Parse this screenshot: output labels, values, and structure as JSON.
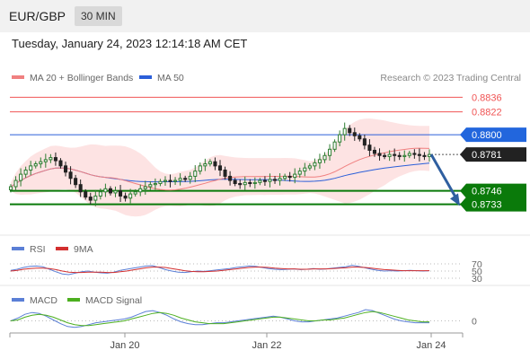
{
  "header": {
    "pair": "EUR/GBP",
    "timeframe": "30 MIN"
  },
  "datetime": "Tuesday, January 24, 2023 12:14:18 AM CET",
  "credit": "Research © 2023 Trading Central",
  "colors": {
    "resistance": "#f05454",
    "support": "#0a7a0a",
    "ma50": "#2b5fd9",
    "ma20": "#f08080",
    "band": "#fde0e0",
    "up": "#2e7d32",
    "down": "#222222",
    "arrow": "#2f5fa0",
    "rsi": "#5b7fd6",
    "rsi_ma": "#d32f2f",
    "macd": "#5b7fd6",
    "macd_signal": "#4caf1f"
  },
  "chart_data": [
    {
      "type": "candlestick",
      "legend": [
        {
          "name": "MA 20 + Bollinger Bands",
          "color": "#f08080"
        },
        {
          "name": "MA 50",
          "color": "#2b5fd9"
        }
      ],
      "x_ticks": [
        "Jan 20",
        "Jan 22",
        "Jan 24"
      ],
      "ylim": [
        0.8712,
        0.8845
      ],
      "current_price": {
        "label": "0.8781",
        "value": 0.8781
      },
      "levels": [
        {
          "label": "0.8836",
          "value": 0.8836,
          "kind": "resistance"
        },
        {
          "label": "0.8822",
          "value": 0.8822,
          "kind": "resistance"
        },
        {
          "label": "0.8800",
          "value": 0.88,
          "kind": "pivot"
        },
        {
          "label": "0.8746",
          "value": 0.8746,
          "kind": "support"
        },
        {
          "label": "0.8733",
          "value": 0.8733,
          "kind": "support"
        }
      ],
      "target_path": [
        [
          0.8781
        ],
        [
          0.8735
        ]
      ],
      "close": [
        0.875,
        0.8756,
        0.8762,
        0.8766,
        0.877,
        0.8772,
        0.8774,
        0.8776,
        0.8778,
        0.8775,
        0.877,
        0.8764,
        0.8758,
        0.8752,
        0.8745,
        0.874,
        0.8737,
        0.8741,
        0.8745,
        0.8748,
        0.8744,
        0.8746,
        0.8741,
        0.8739,
        0.8743,
        0.8745,
        0.8748,
        0.875,
        0.8752,
        0.8753,
        0.8755,
        0.8756,
        0.8755,
        0.8756,
        0.8758,
        0.8757,
        0.876,
        0.8765,
        0.877,
        0.8772,
        0.8774,
        0.877,
        0.8766,
        0.876,
        0.8756,
        0.8753,
        0.8752,
        0.8754,
        0.8753,
        0.8754,
        0.8756,
        0.8755,
        0.8757,
        0.8756,
        0.8758,
        0.876,
        0.8759,
        0.8762,
        0.8765,
        0.8768,
        0.877,
        0.8773,
        0.8776,
        0.878,
        0.8786,
        0.8793,
        0.88,
        0.8806,
        0.8802,
        0.8799,
        0.8796,
        0.879,
        0.8785,
        0.8782,
        0.878,
        0.8779,
        0.8781,
        0.878,
        0.8779,
        0.878,
        0.8782,
        0.8781,
        0.878,
        0.8779,
        0.8781
      ]
    },
    {
      "type": "line",
      "legend": [
        {
          "name": "RSI",
          "color": "#5b7fd6"
        },
        {
          "name": "9MA",
          "color": "#d32f2f"
        }
      ],
      "y_ticks": [
        "70",
        "50",
        "30"
      ],
      "ylim": [
        20,
        80
      ],
      "series": [
        {
          "name": "RSI",
          "values": [
            52,
            55,
            60,
            63,
            64,
            62,
            55,
            48,
            42,
            40,
            44,
            48,
            50,
            47,
            45,
            44,
            47,
            52,
            55,
            58,
            61,
            64,
            65,
            60,
            54,
            50,
            47,
            46,
            48,
            50,
            49,
            51,
            53,
            55,
            57,
            60,
            62,
            64,
            63,
            60,
            57,
            55,
            54,
            55,
            56,
            54,
            55,
            57,
            55,
            56,
            58,
            60,
            62,
            66,
            63,
            59,
            55,
            52,
            50,
            51,
            50,
            51,
            52,
            51,
            50,
            51
          ]
        },
        {
          "name": "9MA",
          "values": [
            50,
            52,
            55,
            57,
            58,
            58,
            57,
            54,
            50,
            47,
            46,
            46,
            47,
            47,
            47,
            46,
            46,
            48,
            50,
            53,
            56,
            59,
            61,
            61,
            60,
            57,
            54,
            51,
            49,
            48,
            48,
            49,
            50,
            52,
            54,
            56,
            58,
            60,
            61,
            61,
            60,
            58,
            57,
            56,
            56,
            55,
            55,
            56,
            56,
            56,
            57,
            58,
            59,
            61,
            61,
            60,
            58,
            56,
            54,
            53,
            52,
            51,
            51,
            51,
            51,
            51
          ]
        }
      ]
    },
    {
      "type": "line",
      "legend": [
        {
          "name": "MACD",
          "color": "#5b7fd6"
        },
        {
          "name": "MACD Signal",
          "color": "#4caf1f"
        }
      ],
      "y_ticks": [
        "0"
      ],
      "ylim": [
        -1.2,
        1.3
      ],
      "series": [
        {
          "name": "MACD",
          "values": [
            0.0,
            0.3,
            0.7,
            0.9,
            0.8,
            0.5,
            0.1,
            -0.3,
            -0.6,
            -0.7,
            -0.6,
            -0.4,
            -0.2,
            -0.1,
            0.0,
            0.1,
            0.2,
            0.4,
            0.7,
            1.0,
            1.1,
            0.9,
            0.6,
            0.2,
            -0.1,
            -0.3,
            -0.4,
            -0.4,
            -0.3,
            -0.2,
            -0.2,
            -0.1,
            0.0,
            0.1,
            0.2,
            0.3,
            0.4,
            0.5,
            0.4,
            0.2,
            0.0,
            -0.1,
            -0.1,
            0.0,
            0.1,
            0.2,
            0.3,
            0.5,
            0.7,
            0.9,
            1.2,
            1.1,
            0.8,
            0.5,
            0.2,
            0.0,
            -0.1,
            -0.2,
            -0.2,
            -0.2
          ]
        },
        {
          "name": "MACD Signal",
          "values": [
            0.0,
            0.1,
            0.4,
            0.6,
            0.7,
            0.6,
            0.4,
            0.1,
            -0.2,
            -0.4,
            -0.5,
            -0.5,
            -0.4,
            -0.3,
            -0.2,
            -0.1,
            0.0,
            0.2,
            0.4,
            0.6,
            0.8,
            0.9,
            0.8,
            0.6,
            0.3,
            0.1,
            -0.1,
            -0.2,
            -0.3,
            -0.3,
            -0.3,
            -0.2,
            -0.1,
            0.0,
            0.1,
            0.2,
            0.3,
            0.4,
            0.4,
            0.3,
            0.2,
            0.1,
            0.0,
            0.0,
            0.1,
            0.1,
            0.2,
            0.3,
            0.5,
            0.7,
            0.9,
            1.0,
            0.9,
            0.7,
            0.5,
            0.3,
            0.1,
            0.0,
            -0.1,
            -0.1
          ]
        }
      ]
    }
  ]
}
